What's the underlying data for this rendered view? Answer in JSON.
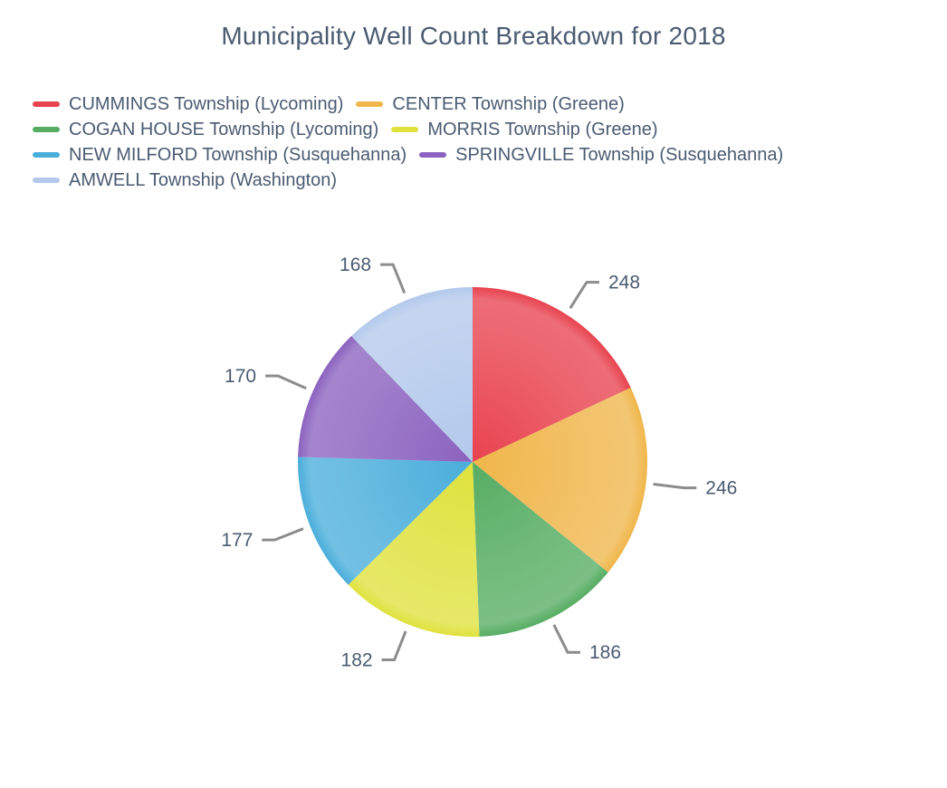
{
  "chart_data": {
    "type": "pie",
    "title": "Municipality Well Count Breakdown for 2018",
    "legend_position": "top-left",
    "slices": [
      {
        "name": "CUMMINGS Township (Lycoming)",
        "value": 248,
        "label": "248",
        "color": "#e8434f"
      },
      {
        "name": "CENTER Township (Greene)",
        "value": 246,
        "label": "246",
        "color": "#f0b64a"
      },
      {
        "name": "COGAN HOUSE Township (Lycoming)",
        "value": 186,
        "label": "186",
        "color": "#56ad62"
      },
      {
        "name": "MORRIS Township (Greene)",
        "value": 182,
        "label": "182",
        "color": "#dfe23c"
      },
      {
        "name": "NEW MILFORD Township (Susquehanna)",
        "value": 177,
        "label": "177",
        "color": "#4aaedb"
      },
      {
        "name": "SPRINGVILLE Township (Susquehanna)",
        "value": 170,
        "label": "170",
        "color": "#8b62bf"
      },
      {
        "name": "AMWELL Township (Washington)",
        "value": 168,
        "label": "168",
        "color": "#b3c9ec"
      }
    ]
  }
}
